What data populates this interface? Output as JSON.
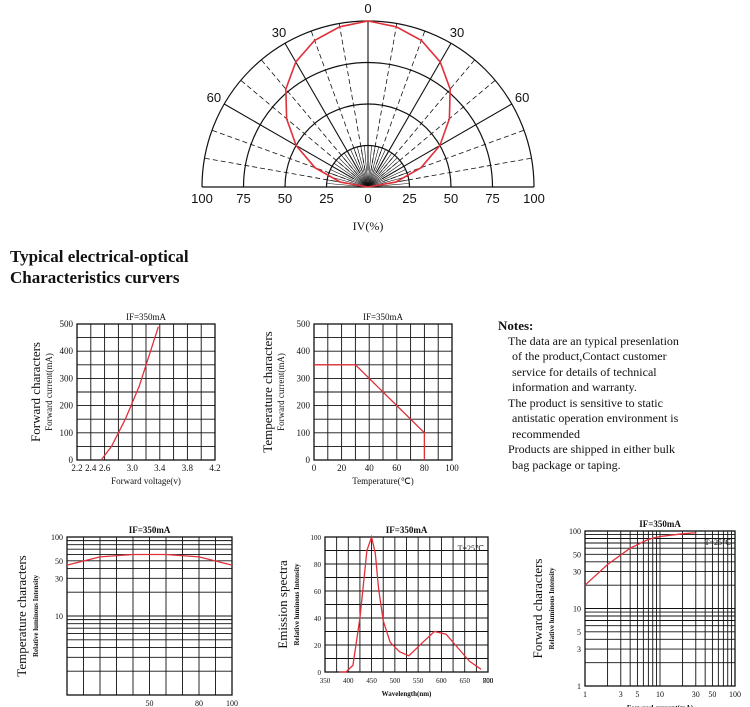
{
  "heading": [
    "Typical electrical-optical",
    "Characteristics curvers"
  ],
  "polar": {
    "angle_labels": [
      "0",
      "30",
      "30",
      "60",
      "60"
    ],
    "scale_labels": [
      "100",
      "75",
      "50",
      "25",
      "0",
      "25",
      "50",
      "75",
      "100"
    ],
    "xlabel": "IV(%)"
  },
  "notes": {
    "title": "Notes:",
    "items": [
      [
        "The data are an typical presenlation",
        "of the product,Contact customer",
        "service for details of technical",
        "information and warranty."
      ],
      [
        "The product is sensitive to static",
        "antistatic operation environment is",
        "recommended"
      ],
      [
        "Products are shipped in either bulk",
        "bag package or taping."
      ]
    ]
  },
  "colors": {
    "curve": "#e0303a",
    "grid": "#111111"
  },
  "chart_data": [
    {
      "type": "polar",
      "title": "",
      "xlabel": "IV(%)",
      "angle_deg": [
        -90,
        -80,
        -70,
        -60,
        -50,
        -40,
        -30,
        -20,
        -10,
        0,
        10,
        20,
        30,
        40,
        50,
        60,
        70,
        80,
        90
      ],
      "values": [
        0,
        17,
        34,
        50,
        64,
        77,
        87,
        94,
        98,
        100,
        98,
        94,
        87,
        77,
        64,
        50,
        34,
        17,
        0
      ],
      "rlim": [
        0,
        100
      ]
    },
    {
      "type": "line",
      "title": "IF=350mA",
      "xlabel": "Forward voltage(v)",
      "ylabel": [
        "Forward characters",
        "Forward current(mA)"
      ],
      "xticks": [
        "2.2",
        "2.4",
        "2.6",
        "3.0",
        "3.4",
        "3.8",
        "4.2"
      ],
      "yticks": [
        "0",
        "100",
        "200",
        "300",
        "400",
        "500"
      ],
      "x": [
        2.55,
        2.7,
        2.9,
        3.1,
        3.38
      ],
      "y": [
        0,
        50,
        150,
        270,
        490
      ],
      "xlim": [
        2.2,
        4.2
      ],
      "ylim": [
        0,
        500
      ]
    },
    {
      "type": "line",
      "title": "IF=350mA",
      "xlabel": "Temperature(℃)",
      "ylabel": [
        "Temperature characters",
        "Forward current(mA)"
      ],
      "xticks": [
        "0",
        "20",
        "40",
        "60",
        "80",
        "100"
      ],
      "yticks": [
        "0",
        "100",
        "200",
        "300",
        "400",
        "500"
      ],
      "x": [
        0,
        30,
        80,
        80
      ],
      "y": [
        350,
        350,
        100,
        0
      ],
      "xlim": [
        0,
        100
      ],
      "ylim": [
        0,
        500
      ]
    },
    {
      "type": "line",
      "title": "IF=350mA",
      "xlabel": "",
      "ylabel": [
        "Temperature characters",
        "Relative luminous Intensity"
      ],
      "xticks": [
        "50",
        "80",
        "100"
      ],
      "yticks": [
        "100",
        "50",
        "30",
        "10"
      ],
      "x": [
        0,
        20,
        40,
        60,
        80,
        100
      ],
      "y": [
        44,
        56,
        60,
        60,
        56,
        44
      ],
      "xlim": [
        0,
        100
      ],
      "ylim": [
        1,
        100
      ]
    },
    {
      "type": "line",
      "title": "IF=350mA",
      "annotation": "T=25℃",
      "xlabel": "Wavelength(nm)",
      "ylabel": [
        "Emission spectra",
        "Relative luminous Intensity"
      ],
      "xticks": [
        "350",
        "400",
        "450",
        "500",
        "550",
        "600",
        "650",
        "700",
        "800"
      ],
      "yticks": [
        "0",
        "20",
        "40",
        "60",
        "80",
        "100"
      ],
      "x": [
        380,
        395,
        410,
        425,
        440,
        450,
        458,
        465,
        475,
        490,
        510,
        530,
        560,
        585,
        610,
        630,
        660,
        685
      ],
      "y": [
        0,
        0,
        5,
        40,
        90,
        100,
        88,
        62,
        38,
        22,
        15,
        12,
        22,
        30,
        28,
        20,
        8,
        2
      ],
      "xlim": [
        350,
        700
      ],
      "ylim": [
        0,
        100
      ]
    },
    {
      "type": "line",
      "title": "IF=350mA",
      "annotation": "T=25℃",
      "xlabel": "Forward current(mA)",
      "ylabel": [
        "Forward characters",
        "Relative luminous Intensity"
      ],
      "xticks": [
        "1",
        "3",
        "5",
        "10",
        "30",
        "50",
        "100"
      ],
      "yticks": [
        "1",
        "3",
        "5",
        "10",
        "30",
        "50",
        "100"
      ],
      "x": [
        1,
        2,
        4,
        7,
        10,
        20,
        30
      ],
      "y": [
        20,
        37,
        60,
        78,
        85,
        92,
        95
      ],
      "xlim": [
        1,
        100
      ],
      "ylim": [
        1,
        100
      ]
    }
  ]
}
